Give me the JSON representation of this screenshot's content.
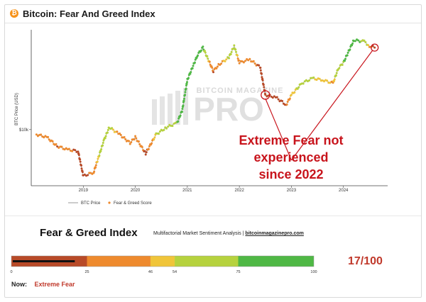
{
  "header": {
    "title": "Bitcoin: Fear And Greed Index",
    "icon": "bitcoin-icon"
  },
  "chart_data": {
    "type": "scatter",
    "title": "Bitcoin: Fear And Greed Index",
    "ylabel": "BTC Price (USD)",
    "y_scale": "log",
    "y_ticks": [
      "$10k"
    ],
    "x_ticks": [
      "2019",
      "2020",
      "2021",
      "2022",
      "2023",
      "2024"
    ],
    "legend": [
      "BTC Price",
      "Fear & Greed Score"
    ],
    "legend_position": "bottom",
    "watermark": "BITCOIN MAGAZINE PRO",
    "series": [
      {
        "name": "BTC Price",
        "x": [
          2018.1,
          2018.3,
          2018.5,
          2018.7,
          2018.9,
          2019.0,
          2019.2,
          2019.4,
          2019.5,
          2019.7,
          2019.9,
          2020.0,
          2020.2,
          2020.4,
          2020.6,
          2020.8,
          2020.9,
          2021.0,
          2021.2,
          2021.3,
          2021.5,
          2021.6,
          2021.8,
          2021.9,
          2022.0,
          2022.2,
          2022.4,
          2022.5,
          2022.7,
          2022.9,
          2023.0,
          2023.2,
          2023.4,
          2023.6,
          2023.8,
          2023.9,
          2024.0,
          2024.2,
          2024.4,
          2024.5,
          2024.6
        ],
        "y": [
          9000,
          8500,
          7000,
          6500,
          6300,
          3700,
          4000,
          8000,
          10500,
          9000,
          7500,
          8500,
          6000,
          9000,
          10500,
          11500,
          15000,
          29000,
          50000,
          58000,
          35000,
          40000,
          47000,
          60000,
          42000,
          45000,
          38000,
          21000,
          20000,
          17000,
          21000,
          27000,
          30000,
          29000,
          27000,
          37000,
          42000,
          68000,
          66000,
          60000,
          58000
        ]
      },
      {
        "name": "Fear & Greed Score",
        "values": [
          40,
          35,
          25,
          30,
          20,
          15,
          35,
          70,
          60,
          40,
          30,
          45,
          20,
          55,
          65,
          75,
          85,
          90,
          95,
          80,
          25,
          35,
          60,
          75,
          30,
          40,
          20,
          10,
          20,
          25,
          50,
          60,
          55,
          50,
          45,
          70,
          75,
          85,
          70,
          40,
          17
        ]
      }
    ],
    "annotations": [
      {
        "text": "Extreme Fear not experienced since 2022",
        "lines": [
          "Extreme Fear not",
          "experienced",
          "since 2022"
        ]
      }
    ]
  },
  "index": {
    "title": "Fear & Greed Index",
    "subtitle": "Multifactorial Market Sentiment Analysis | ",
    "site": "bitcoinmagazinepro.com",
    "score_text": "17/100",
    "score": 17,
    "now_label": "Now:",
    "now_value": "Extreme Fear",
    "scale": [
      {
        "from": 0,
        "to": 25,
        "color": "#b84a28"
      },
      {
        "from": 25,
        "to": 46,
        "color": "#ee8a2e"
      },
      {
        "from": 46,
        "to": 54,
        "color": "#f0c53a"
      },
      {
        "from": 54,
        "to": 75,
        "color": "#b6d23e"
      },
      {
        "from": 75,
        "to": 100,
        "color": "#4fb845"
      }
    ],
    "ticks": [
      "0",
      "25",
      "46",
      "54",
      "75",
      "100"
    ]
  }
}
